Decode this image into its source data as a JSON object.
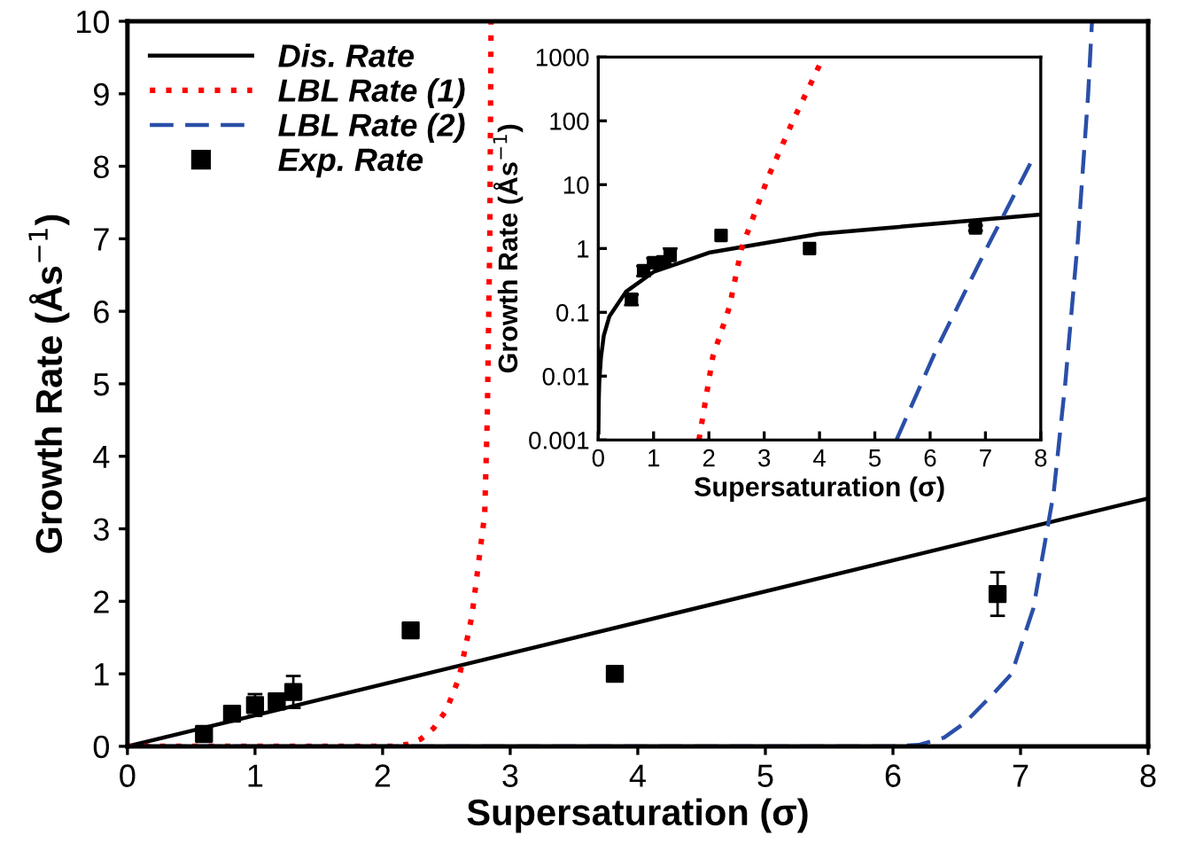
{
  "chart_data": [
    {
      "type": "line",
      "xlabel": "Supersaturation (σ)",
      "ylabel": "Growth Rate (Ås$^{−1}$)",
      "xlim": [
        0,
        8
      ],
      "ylim": [
        0,
        10
      ],
      "xticks": [
        0,
        1,
        2,
        3,
        4,
        5,
        6,
        7,
        8
      ],
      "yticks": [
        0,
        1,
        2,
        3,
        4,
        5,
        6,
        7,
        8,
        9,
        10
      ],
      "grid": false,
      "legend": "top left",
      "series": [
        {
          "name": "Dis. Rate",
          "color": "#000000",
          "line_style": "solid",
          "x": [
            0,
            8
          ],
          "values": [
            0,
            3.42
          ]
        },
        {
          "name": "LBL Rate (1)",
          "color": "#ff0000",
          "line_style": "dotted",
          "x": [
            0,
            2.1,
            2.2,
            2.3,
            2.4,
            2.5,
            2.6,
            2.7,
            2.8,
            2.82,
            2.84,
            2.85
          ],
          "values": [
            0,
            0,
            0.03,
            0.1,
            0.25,
            0.5,
            0.95,
            1.8,
            3.2,
            4.5,
            7,
            10
          ]
        },
        {
          "name": "LBL Rate (2)",
          "color": "#2a4fa8",
          "line_style": "dashed",
          "x": [
            0,
            6.0,
            6.2,
            6.4,
            6.56,
            6.8,
            6.93,
            7.1,
            7.26,
            7.35,
            7.45,
            7.53,
            7.56
          ],
          "values": [
            0,
            0,
            0.02,
            0.12,
            0.32,
            0.75,
            1,
            1.9,
            3.5,
            5,
            7,
            9,
            10
          ]
        },
        {
          "name": "Exp. Rate",
          "type": "scatter",
          "color": "#000000",
          "marker": "square",
          "x": [
            0.6,
            0.82,
            1.0,
            1.17,
            1.3,
            2.22,
            3.82,
            6.82
          ],
          "values": [
            0.17,
            0.45,
            0.57,
            0.62,
            0.75,
            1.6,
            1.0,
            2.1
          ],
          "errors": [
            null,
            null,
            0.15,
            0.08,
            0.22,
            null,
            null,
            0.3
          ]
        }
      ]
    },
    {
      "type": "line",
      "xlabel": "Supersaturation (σ)",
      "ylabel": "Growth Rate (Ås$^{−1}$)",
      "log": "y",
      "xlim": [
        0,
        8
      ],
      "ylim": [
        0.001,
        1000
      ],
      "xticks": [
        0,
        1,
        2,
        3,
        4,
        5,
        6,
        7,
        8
      ],
      "yticks": [
        {
          "value": 0.001,
          "label": "0.001"
        },
        {
          "value": 0.01,
          "label": "0.01"
        },
        {
          "value": 0.1,
          "label": "0.1"
        },
        {
          "value": 1,
          "label": "1"
        },
        {
          "value": 10,
          "label": "10"
        },
        {
          "value": 100,
          "label": "100"
        },
        {
          "value": 1000,
          "label": "1000"
        }
      ],
      "grid": false,
      "legend": false,
      "series": [
        {
          "color": "#000000",
          "line_style": "solid",
          "x": [
            0.003,
            0.01,
            0.02,
            0.05,
            0.1,
            0.2,
            0.5,
            1,
            2,
            4,
            8
          ],
          "values": [
            0.0013,
            0.0043,
            0.0086,
            0.02,
            0.043,
            0.086,
            0.21,
            0.43,
            0.86,
            1.7,
            3.4
          ]
        },
        {
          "color": "#ff0000",
          "line_style": "dotted",
          "x": [
            1.82,
            2.07,
            2.37,
            2.59,
            3.07,
            3.52,
            4.07
          ],
          "values": [
            0.001,
            0.02,
            0.12,
            1,
            13,
            100,
            1000
          ]
        },
        {
          "color": "#2a4fa8",
          "line_style": "dashed",
          "x": [
            5.39,
            6.12,
            7.02,
            7.87
          ],
          "values": [
            0.001,
            0.027,
            1,
            27
          ]
        },
        {
          "type": "scatter",
          "color": "#000000",
          "marker": "square",
          "x": [
            0.6,
            0.82,
            1.0,
            1.17,
            1.3,
            2.22,
            3.82,
            6.82
          ],
          "values": [
            0.16,
            0.45,
            0.6,
            0.62,
            0.78,
            1.6,
            1.0,
            2.1
          ],
          "errors": [
            0.03,
            0.08,
            0.1,
            0.1,
            0.22,
            null,
            null,
            0.2
          ]
        }
      ]
    }
  ]
}
